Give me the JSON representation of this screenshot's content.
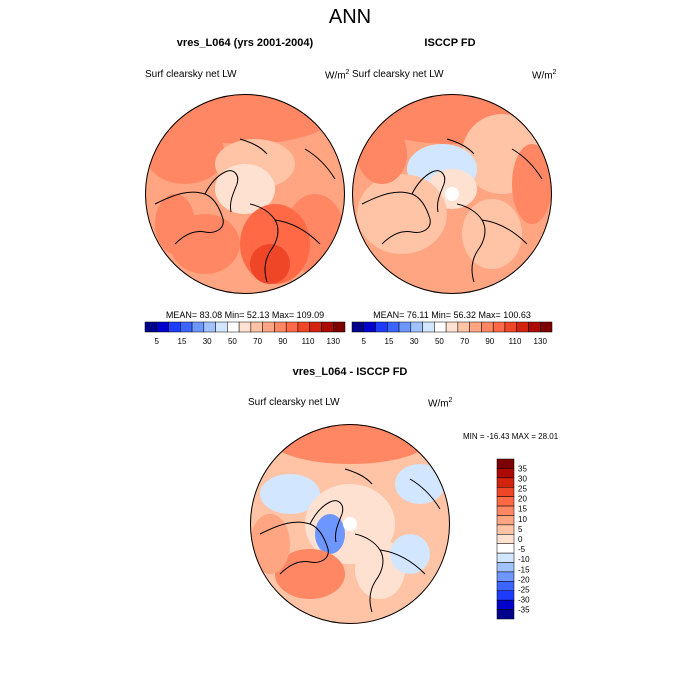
{
  "figure": {
    "title": "ANN",
    "colors": {
      "land_outline": "#000000",
      "map_border": "#000000",
      "abs_palette": [
        "#00008b",
        "#0000cd",
        "#1e3cff",
        "#3c64ff",
        "#6e96ff",
        "#a0c3ff",
        "#d2e6ff",
        "#ffffff",
        "#ffe1d2",
        "#ffc3a5",
        "#ffa582",
        "#ff8764",
        "#ff6946",
        "#f04628",
        "#d2230f",
        "#aa0a00",
        "#7d0000"
      ],
      "diff_palette": [
        "#00008b",
        "#0000cd",
        "#1e3cff",
        "#3c64ff",
        "#6e96ff",
        "#a0c3ff",
        "#d2e6ff",
        "#ffffff",
        "#ffe1d2",
        "#ffc3a5",
        "#ffa582",
        "#ff8764",
        "#ff6946",
        "#f04628",
        "#d2230f",
        "#aa0a00",
        "#7d0000"
      ]
    }
  },
  "chart_data": [
    {
      "type": "heatmap",
      "projection": "north polar stereographic",
      "title": "vres_L064 (yrs 2001-2004)",
      "field_label": "Surf clearsky net LW",
      "units_base": "W/m",
      "units_exp": "2",
      "stats_text": "MEAN=  83.08  Min=  52.13  Max= 109.09",
      "mean": 83.08,
      "min": 52.13,
      "max": 109.09,
      "colorbar_ticks": [
        "5",
        "15",
        "30",
        "50",
        "70",
        "90",
        "110",
        "130"
      ]
    },
    {
      "type": "heatmap",
      "projection": "north polar stereographic",
      "title": "ISCCP FD",
      "field_label": "Surf clearsky net LW",
      "units_base": "W/m",
      "units_exp": "2",
      "stats_text": "MEAN=  76.11  Min=  56.32  Max= 100.63",
      "mean": 76.11,
      "min": 56.32,
      "max": 100.63,
      "colorbar_ticks": [
        "5",
        "15",
        "30",
        "50",
        "70",
        "90",
        "110",
        "130"
      ]
    },
    {
      "type": "heatmap",
      "projection": "north polar stereographic",
      "title": "vres_L064 - ISCCP FD",
      "field_label": "Surf clearsky net LW",
      "units_base": "W/m",
      "units_exp": "2",
      "stats_text": "MIN = -16.43 MAX =  28.01",
      "min": -16.43,
      "max": 28.01,
      "colorbar_ticks": [
        "35",
        "30",
        "25",
        "20",
        "15",
        "10",
        "5",
        "0",
        "-5",
        "-10",
        "-15",
        "-20",
        "-25",
        "-30",
        "-35"
      ]
    }
  ]
}
